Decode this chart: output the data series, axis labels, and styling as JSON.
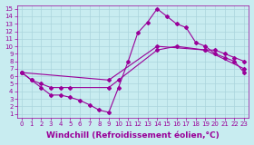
{
  "xlabel": "Windchill (Refroidissement éolien,°C)",
  "xlim": [
    -0.5,
    23.5
  ],
  "ylim": [
    0.5,
    15.5
  ],
  "xticks": [
    0,
    1,
    2,
    3,
    4,
    5,
    6,
    7,
    8,
    9,
    10,
    11,
    12,
    13,
    14,
    15,
    16,
    17,
    18,
    19,
    20,
    21,
    22,
    23
  ],
  "yticks": [
    1,
    2,
    3,
    4,
    5,
    6,
    7,
    8,
    9,
    10,
    11,
    12,
    13,
    14,
    15
  ],
  "bg_color": "#c8ecf0",
  "grid_color": "#aad4dc",
  "line_color": "#990099",
  "line1_x": [
    0,
    1,
    2,
    3,
    4,
    5,
    6,
    7,
    8,
    9,
    10,
    11,
    12,
    13,
    14,
    15,
    16,
    17,
    18,
    19,
    20,
    21,
    22,
    23
  ],
  "line1_y": [
    6.5,
    5.5,
    4.5,
    3.5,
    3.5,
    3.2,
    2.8,
    2.2,
    1.5,
    1.2,
    4.5,
    8.0,
    11.8,
    13.2,
    15.0,
    14.0,
    13.0,
    12.5,
    10.5,
    10.0,
    9.0,
    8.5,
    8.0,
    6.5
  ],
  "line2_x": [
    0,
    1,
    2,
    3,
    4,
    5,
    9,
    10,
    14,
    16,
    19,
    20,
    21,
    22,
    23
  ],
  "line2_y": [
    6.5,
    5.5,
    5.0,
    4.5,
    4.5,
    4.5,
    4.5,
    5.5,
    9.5,
    10.0,
    9.5,
    9.5,
    9.0,
    8.5,
    8.0
  ],
  "line3_x": [
    0,
    9,
    14,
    19,
    23
  ],
  "line3_y": [
    6.5,
    5.5,
    10.0,
    9.5,
    7.0
  ],
  "marker": "D",
  "markersize": 2,
  "linewidth": 0.8,
  "tick_fontsize": 5,
  "label_fontsize": 6.5
}
